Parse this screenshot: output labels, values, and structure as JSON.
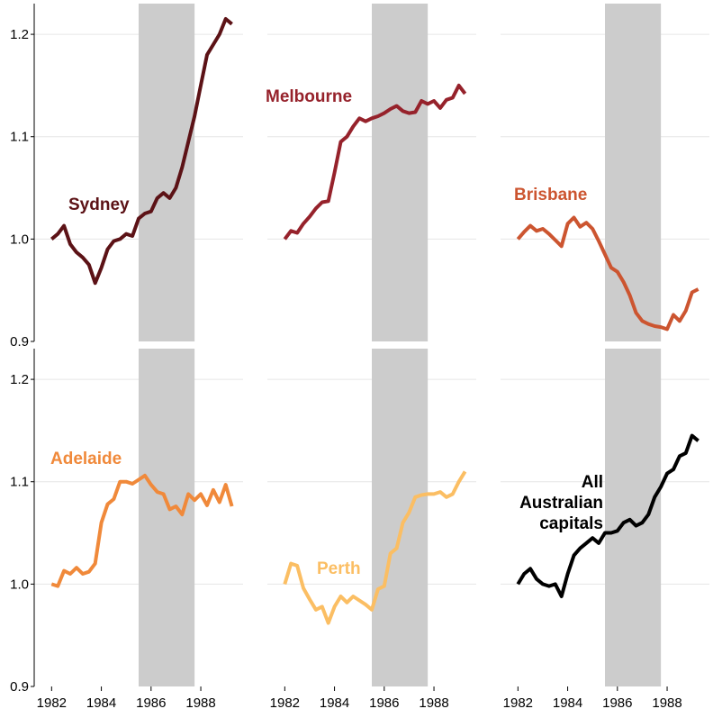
{
  "chart_data": {
    "type": "line",
    "ylim": [
      0.9,
      1.23
    ],
    "yticks": [
      0.9,
      1.0,
      1.1,
      1.2
    ],
    "ytick_labels": [
      "0.9",
      "1.0",
      "1.1",
      "1.2"
    ],
    "xlim": [
      1981.3,
      1989.7
    ],
    "xticks": [
      1982,
      1984,
      1986,
      1988
    ],
    "xtick_labels": [
      "1982",
      "1984",
      "1986",
      "1988"
    ],
    "shaded_period": [
      1985.5,
      1987.75
    ],
    "grid": true,
    "grid_color": "#e6e6e6",
    "shade_color": "#cccccc",
    "panels": [
      {
        "label": "Sydney",
        "color": "#5c1216",
        "x": [
          1982.0,
          1982.25,
          1982.5,
          1982.75,
          1983.0,
          1983.25,
          1983.5,
          1983.75,
          1984.0,
          1984.25,
          1984.5,
          1984.75,
          1985.0,
          1985.25,
          1985.5,
          1985.75,
          1986.0,
          1986.25,
          1986.5,
          1986.75,
          1987.0,
          1987.25,
          1987.5,
          1987.75,
          1988.0,
          1988.25,
          1988.5,
          1988.75,
          1989.0,
          1989.25
        ],
        "y": [
          1.0,
          1.005,
          1.013,
          0.995,
          0.987,
          0.982,
          0.975,
          0.957,
          0.972,
          0.99,
          0.998,
          1.0,
          1.005,
          1.003,
          1.02,
          1.025,
          1.027,
          1.04,
          1.045,
          1.04,
          1.05,
          1.07,
          1.095,
          1.12,
          1.15,
          1.18,
          1.19,
          1.2,
          1.215,
          1.21
        ]
      },
      {
        "label": "Melbourne",
        "color": "#96222b",
        "x": [
          1982.0,
          1982.25,
          1982.5,
          1982.75,
          1983.0,
          1983.25,
          1983.5,
          1983.75,
          1984.0,
          1984.25,
          1984.5,
          1984.75,
          1985.0,
          1985.25,
          1985.5,
          1985.75,
          1986.0,
          1986.25,
          1986.5,
          1986.75,
          1987.0,
          1987.25,
          1987.5,
          1987.75,
          1988.0,
          1988.25,
          1988.5,
          1988.75,
          1989.0,
          1989.25
        ],
        "y": [
          1.0,
          1.008,
          1.006,
          1.015,
          1.022,
          1.03,
          1.036,
          1.037,
          1.065,
          1.095,
          1.1,
          1.11,
          1.118,
          1.115,
          1.118,
          1.12,
          1.123,
          1.127,
          1.13,
          1.125,
          1.123,
          1.124,
          1.135,
          1.132,
          1.135,
          1.128,
          1.136,
          1.138,
          1.15,
          1.142
        ]
      },
      {
        "label": "Brisbane",
        "color": "#cc5530",
        "x": [
          1982.0,
          1982.25,
          1982.5,
          1982.75,
          1983.0,
          1983.25,
          1983.5,
          1983.75,
          1984.0,
          1984.25,
          1984.5,
          1984.75,
          1985.0,
          1985.25,
          1985.5,
          1985.75,
          1986.0,
          1986.25,
          1986.5,
          1986.75,
          1987.0,
          1987.25,
          1987.5,
          1987.75,
          1988.0,
          1988.25,
          1988.5,
          1988.75,
          1989.0,
          1989.25
        ],
        "y": [
          1.0,
          1.007,
          1.013,
          1.008,
          1.01,
          1.005,
          0.999,
          0.993,
          1.015,
          1.021,
          1.012,
          1.016,
          1.01,
          0.998,
          0.985,
          0.972,
          0.968,
          0.958,
          0.945,
          0.928,
          0.92,
          0.917,
          0.915,
          0.914,
          0.912,
          0.926,
          0.92,
          0.93,
          0.948,
          0.951
        ]
      },
      {
        "label": "Adelaide",
        "color": "#f0893a",
        "x": [
          1982.0,
          1982.25,
          1982.5,
          1982.75,
          1983.0,
          1983.25,
          1983.5,
          1983.75,
          1984.0,
          1984.25,
          1984.5,
          1984.75,
          1985.0,
          1985.25,
          1985.5,
          1985.75,
          1986.0,
          1986.25,
          1986.5,
          1986.75,
          1987.0,
          1987.25,
          1987.5,
          1987.75,
          1988.0,
          1988.25,
          1988.5,
          1988.75,
          1989.0,
          1989.25
        ],
        "y": [
          1.0,
          0.998,
          1.013,
          1.01,
          1.016,
          1.01,
          1.012,
          1.02,
          1.06,
          1.078,
          1.083,
          1.1,
          1.1,
          1.098,
          1.102,
          1.106,
          1.097,
          1.09,
          1.088,
          1.073,
          1.076,
          1.068,
          1.088,
          1.082,
          1.088,
          1.077,
          1.092,
          1.08,
          1.097,
          1.076
        ]
      },
      {
        "label": "Perth",
        "color": "#fbbe63",
        "x": [
          1982.0,
          1982.25,
          1982.5,
          1982.75,
          1983.0,
          1983.25,
          1983.5,
          1983.75,
          1984.0,
          1984.25,
          1984.5,
          1984.75,
          1985.0,
          1985.25,
          1985.5,
          1985.75,
          1986.0,
          1986.25,
          1986.5,
          1986.75,
          1987.0,
          1987.25,
          1987.5,
          1987.75,
          1988.0,
          1988.25,
          1988.5,
          1988.75,
          1989.0,
          1989.25
        ],
        "y": [
          1.0,
          1.02,
          1.018,
          0.996,
          0.985,
          0.975,
          0.978,
          0.962,
          0.978,
          0.988,
          0.982,
          0.988,
          0.984,
          0.98,
          0.975,
          0.995,
          0.998,
          1.03,
          1.035,
          1.06,
          1.07,
          1.085,
          1.087,
          1.088,
          1.088,
          1.09,
          1.085,
          1.088,
          1.1,
          1.11
        ]
      },
      {
        "label": "All Australian capitals",
        "label_lines": [
          "All",
          "Australian",
          "capitals"
        ],
        "color": "#000000",
        "x": [
          1982.0,
          1982.25,
          1982.5,
          1982.75,
          1983.0,
          1983.25,
          1983.5,
          1983.75,
          1984.0,
          1984.25,
          1984.5,
          1984.75,
          1985.0,
          1985.25,
          1985.5,
          1985.75,
          1986.0,
          1986.25,
          1986.5,
          1986.75,
          1987.0,
          1987.25,
          1987.5,
          1987.75,
          1988.0,
          1988.25,
          1988.5,
          1988.75,
          1989.0,
          1989.25
        ],
        "y": [
          1.0,
          1.01,
          1.015,
          1.005,
          1.0,
          0.998,
          1.0,
          0.988,
          1.01,
          1.028,
          1.035,
          1.04,
          1.045,
          1.04,
          1.05,
          1.05,
          1.052,
          1.06,
          1.063,
          1.057,
          1.06,
          1.068,
          1.085,
          1.095,
          1.108,
          1.112,
          1.125,
          1.128,
          1.145,
          1.14
        ]
      }
    ]
  }
}
